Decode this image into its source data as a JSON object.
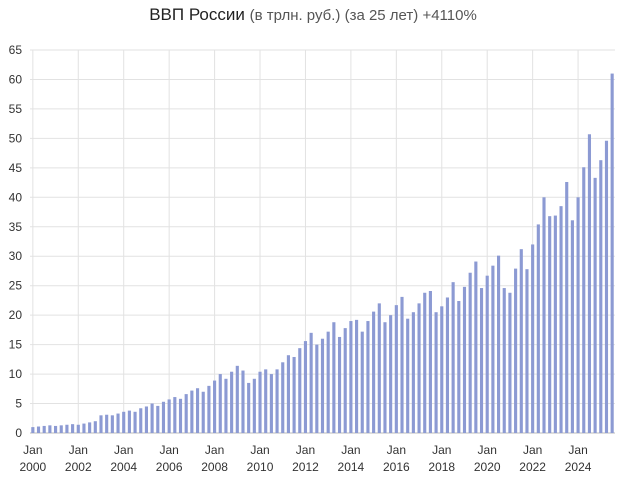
{
  "chart_data": {
    "type": "bar",
    "title": "ВВП России",
    "subtitle": "(в трлн. руб.) (за 25 лет) +4110%",
    "ylim": [
      0,
      65
    ],
    "yticks": [
      0,
      5,
      10,
      15,
      20,
      25,
      30,
      35,
      40,
      45,
      50,
      55,
      60,
      65
    ],
    "xtick_labels": [
      [
        "Jan",
        "2000"
      ],
      [
        "Jan",
        "2002"
      ],
      [
        "Jan",
        "2004"
      ],
      [
        "Jan",
        "2006"
      ],
      [
        "Jan",
        "2008"
      ],
      [
        "Jan",
        "2010"
      ],
      [
        "Jan",
        "2012"
      ],
      [
        "Jan",
        "2014"
      ],
      [
        "Jan",
        "2016"
      ],
      [
        "Jan",
        "2018"
      ],
      [
        "Jan",
        "2020"
      ],
      [
        "Jan",
        "2022"
      ],
      [
        "Jan",
        "2024"
      ]
    ],
    "grid": true,
    "bar_color": "#8c9ad3",
    "values": [
      1.0,
      1.1,
      1.2,
      1.3,
      1.2,
      1.3,
      1.4,
      1.5,
      1.4,
      1.6,
      1.8,
      2.0,
      3.0,
      3.1,
      3.0,
      3.3,
      3.6,
      3.8,
      3.6,
      4.2,
      4.5,
      5.0,
      4.6,
      5.3,
      5.7,
      6.1,
      5.8,
      6.6,
      7.2,
      7.6,
      7.0,
      8.0,
      8.9,
      10.0,
      9.2,
      10.4,
      11.4,
      10.6,
      8.5,
      9.2,
      10.4,
      10.8,
      10.0,
      10.8,
      12.0,
      13.2,
      12.9,
      14.4,
      15.6,
      17.0,
      15.0,
      16.0,
      17.2,
      18.8,
      16.3,
      17.8,
      19.0,
      19.2,
      17.2,
      19.0,
      20.6,
      22.0,
      18.8,
      20.0,
      21.7,
      23.1,
      19.4,
      20.5,
      22.0,
      23.8,
      24.1,
      20.5,
      21.5,
      23.0,
      25.6,
      22.4,
      24.8,
      27.2,
      29.1,
      24.6,
      26.7,
      28.4,
      30.1,
      24.6,
      23.8,
      27.9,
      31.2,
      27.8,
      32.0,
      35.4,
      40.0,
      36.8,
      36.9,
      38.5,
      42.6,
      36.1,
      40.0,
      45.1,
      50.7,
      43.3,
      46.3,
      49.6,
      61.0
    ]
  }
}
